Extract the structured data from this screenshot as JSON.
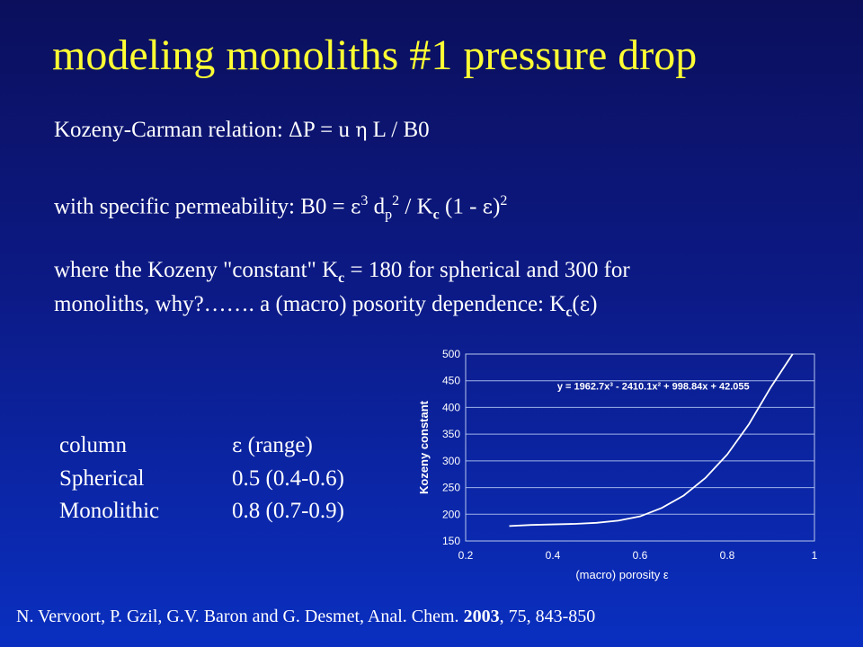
{
  "slide": {
    "title": "modeling monoliths #1 pressure drop",
    "line1": {
      "prefix": "Kozeny-Carman relation: ",
      "delta": "Δ",
      "mid": "P = u ",
      "eta": "η",
      "suffix": " L / B0"
    },
    "line2": {
      "prefix": "with specific permeability: B0 = ",
      "eps1": "ε",
      "sup3": "3",
      "d": " d",
      "sub_p": "p",
      "sup2a": "2",
      "mid": " / K",
      "sub_c": "c",
      "paren_open": " (1 - ",
      "eps2": "ε",
      "paren_close": ")",
      "sup2b": "2"
    },
    "line3": {
      "prefix": "where the Kozeny \"constant\" K",
      "sub_c": "c",
      "suffix": " = 180 for spherical and 300 for"
    },
    "line4": {
      "prefix": "monoliths,  why?……. a (macro) posority dependence: K",
      "sub_c": "c",
      "open": "(",
      "eps": "ε",
      "close": ")"
    }
  },
  "table": {
    "header": {
      "col1": "column",
      "eps": "ε",
      "range": " (range)"
    },
    "rows": [
      {
        "col1": "Spherical",
        "col2": "0.5 (0.4-0.6)"
      },
      {
        "col1": "Monolithic",
        "col2": "0.8 (0.7-0.9)"
      }
    ]
  },
  "chart_data": {
    "type": "line",
    "title": "",
    "xlabel": "(macro) porosity ε",
    "ylabel": "Kozeny constant",
    "xlim": [
      0.2,
      1
    ],
    "ylim": [
      150,
      500
    ],
    "x_ticks": [
      "0.2",
      "0.4",
      "0.6",
      "0.8",
      "1"
    ],
    "y_ticks": [
      "150",
      "200",
      "250",
      "300",
      "350",
      "400",
      "450",
      "500"
    ],
    "grid": "horizontal",
    "equation": "y = 1962.7x³ - 2410.1x² + 998.84x + 42.055",
    "series": [
      {
        "x": [
          0.3,
          0.35,
          0.4,
          0.45,
          0.5,
          0.55,
          0.6,
          0.65,
          0.7,
          0.75,
          0.8,
          0.85,
          0.9,
          0.95
        ],
        "y": [
          178,
          180,
          181,
          182,
          184,
          188,
          196,
          212,
          235,
          268,
          312,
          369,
          438,
          500
        ],
        "color": "#ffffff"
      }
    ]
  },
  "footer": {
    "authors": "N. Vervoort, P. Gzil, G.V. Baron and G. Desmet, Anal. Chem. ",
    "year": "2003",
    "rest": ", 75, 843-850"
  }
}
